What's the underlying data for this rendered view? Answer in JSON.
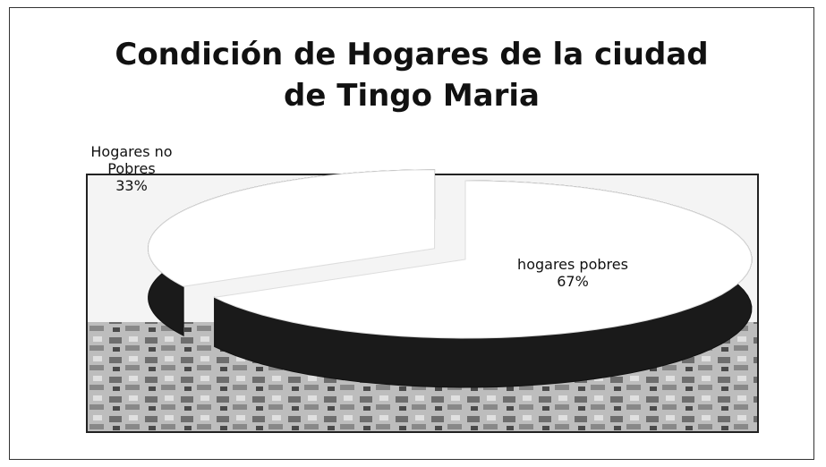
{
  "chart_data": {
    "type": "pie",
    "title": "Condición de Hogares de la ciudad de Tingo Maria",
    "categories": [
      "Hogares no Pobres",
      "hogares pobres"
    ],
    "values": [
      33,
      67
    ],
    "value_labels": [
      "33%",
      "67%"
    ],
    "colors": [
      "#ffffff",
      "#ffffff"
    ]
  }
}
